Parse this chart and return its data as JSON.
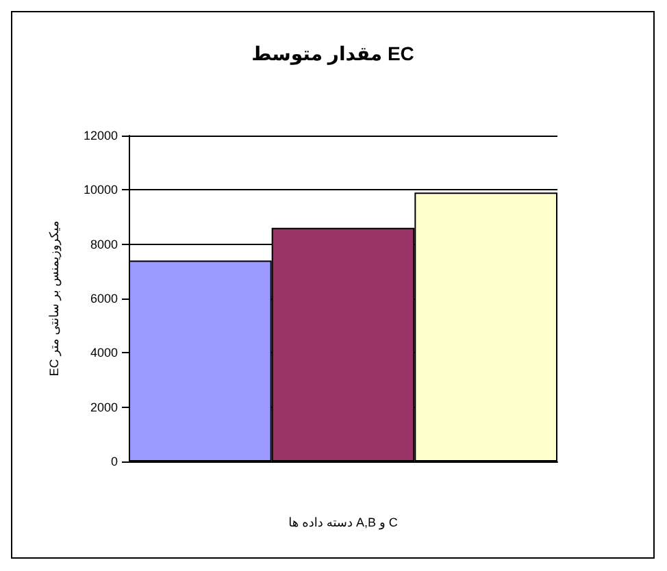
{
  "chart_data": {
    "type": "bar",
    "title": "مقدار متوسط EC",
    "xlabel": "دسته داده ها A,B و C",
    "ylabel": "EC میکروزیمنس بر سانتی متر",
    "categories": [
      null,
      null,
      null
    ],
    "values": [
      7400,
      8600,
      9900
    ],
    "colors": [
      "#9999ff",
      "#993366",
      "#ffffcc"
    ],
    "ylim": [
      0,
      12000
    ],
    "yticks": [
      0,
      2000,
      4000,
      6000,
      8000,
      10000,
      12000
    ],
    "grid": "y"
  }
}
